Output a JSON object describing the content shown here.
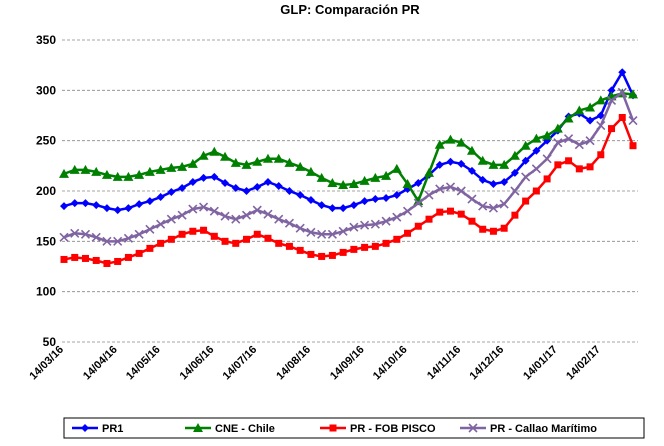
{
  "chart_data": {
    "type": "line",
    "title": "GLP: Comparación PR",
    "categories": [
      "14/03/16",
      null,
      null,
      null,
      null,
      "14/04/16",
      null,
      null,
      null,
      "14/05/16",
      null,
      null,
      null,
      null,
      "14/06/16",
      null,
      null,
      null,
      "14/07/16",
      null,
      null,
      null,
      null,
      "14/08/16",
      null,
      null,
      null,
      null,
      "14/09/16",
      null,
      null,
      null,
      "14/10/16",
      null,
      null,
      null,
      null,
      "14/11/16",
      null,
      null,
      null,
      "14/12/16",
      null,
      null,
      null,
      null,
      "14/01/17",
      null,
      null,
      null,
      "14/02/17",
      null,
      null,
      null
    ],
    "series": [
      {
        "name": "PR1",
        "color": "#0000ff",
        "marker": "diamond",
        "values": [
          185,
          188,
          188,
          186,
          183,
          181,
          183,
          187,
          190,
          194,
          199,
          203,
          209,
          213,
          214,
          208,
          203,
          200,
          204,
          209,
          205,
          200,
          196,
          191,
          186,
          183,
          183,
          186,
          190,
          192,
          193,
          196,
          202,
          208,
          216,
          226,
          229,
          227,
          220,
          211,
          207,
          209,
          218,
          230,
          240,
          250,
          260,
          274,
          277,
          270,
          275,
          300,
          318,
          295
        ]
      },
      {
        "name": "CNE - Chile",
        "color": "#008000",
        "marker": "triangle",
        "values": [
          217,
          221,
          221,
          219,
          216,
          214,
          214,
          216,
          219,
          221,
          223,
          224,
          227,
          235,
          239,
          234,
          228,
          226,
          229,
          232,
          232,
          228,
          224,
          219,
          213,
          208,
          206,
          207,
          210,
          213,
          215,
          222,
          207,
          190,
          218,
          246,
          251,
          248,
          240,
          230,
          226,
          226,
          235,
          245,
          252,
          255,
          262,
          272,
          280,
          283,
          290,
          294,
          297,
          296
        ]
      },
      {
        "name": "PR - FOB PISCO",
        "color": "#ff0000",
        "marker": "square",
        "values": [
          132,
          134,
          133,
          131,
          128,
          130,
          134,
          138,
          143,
          148,
          152,
          157,
          160,
          161,
          155,
          150,
          148,
          152,
          157,
          153,
          148,
          145,
          141,
          137,
          135,
          136,
          139,
          142,
          144,
          145,
          148,
          152,
          158,
          165,
          172,
          179,
          180,
          177,
          170,
          162,
          160,
          163,
          176,
          190,
          200,
          212,
          226,
          230,
          222,
          224,
          236,
          262,
          273,
          245
        ]
      },
      {
        "name": "PR - Callao Marítimo",
        "color": "#8064a2",
        "marker": "x",
        "values": [
          154,
          158,
          157,
          154,
          150,
          150,
          153,
          157,
          162,
          167,
          172,
          176,
          182,
          184,
          180,
          175,
          172,
          176,
          181,
          177,
          172,
          168,
          163,
          159,
          157,
          157,
          160,
          164,
          166,
          167,
          170,
          174,
          180,
          188,
          196,
          202,
          204,
          200,
          192,
          185,
          183,
          187,
          200,
          214,
          222,
          232,
          248,
          252,
          246,
          250,
          265,
          290,
          298,
          270
        ]
      }
    ],
    "ylim": [
      50,
      350
    ],
    "yticks": [
      50,
      100,
      150,
      200,
      250,
      300,
      350
    ],
    "grid": true,
    "legend": "bottom"
  }
}
